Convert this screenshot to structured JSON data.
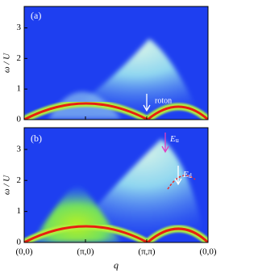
{
  "chart_data": [
    {
      "type": "spectrum",
      "label": "(a)",
      "ylabel": "ω / U",
      "ylim": [
        0,
        3.7
      ],
      "yticks": [
        0,
        1,
        2,
        3
      ],
      "annotations": [
        {
          "text": "roton"
        }
      ]
    },
    {
      "type": "spectrum",
      "label": "(b)",
      "ylabel": "ω / U",
      "xlabel": "q",
      "ylim": [
        0,
        3.7
      ],
      "yticks": [
        0,
        1,
        2,
        3
      ],
      "categories": [
        "(0,0)",
        "(π,0)",
        "(π,π)",
        "(0,0)"
      ],
      "annotations": [
        {
          "text": "E",
          "sub": "u"
        },
        {
          "text": "E",
          "sub": "d"
        }
      ]
    }
  ]
}
